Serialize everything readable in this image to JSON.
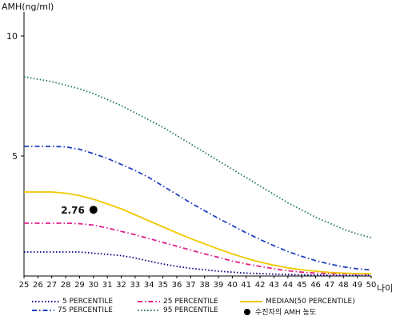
{
  "chart_data": {
    "type": "line",
    "ylabel": "AMH(ng/ml)",
    "xlabel": "나이",
    "x": [
      25,
      26,
      27,
      28,
      29,
      30,
      31,
      32,
      33,
      34,
      35,
      36,
      37,
      38,
      39,
      40,
      41,
      42,
      43,
      44,
      45,
      46,
      47,
      48,
      49,
      50
    ],
    "xlim": [
      25,
      50
    ],
    "ylim": [
      0,
      11
    ],
    "yticks": [
      5,
      10
    ],
    "grid": false,
    "series": [
      {
        "name": "5 PERCENTILE",
        "color": "#000080",
        "dash": "dotted",
        "values": [
          1.0,
          1.0,
          1.0,
          1.0,
          1.0,
          0.95,
          0.9,
          0.85,
          0.75,
          0.62,
          0.5,
          0.4,
          0.32,
          0.26,
          0.2,
          0.16,
          0.12,
          0.1,
          0.08,
          0.06,
          0.05,
          0.04,
          0.03,
          0.02,
          0.02,
          0.02
        ]
      },
      {
        "name": "25 PERCENTILE",
        "color": "#e0208c",
        "dash": "dashdot",
        "values": [
          2.2,
          2.2,
          2.2,
          2.2,
          2.18,
          2.12,
          2.0,
          1.86,
          1.72,
          1.56,
          1.4,
          1.24,
          1.08,
          0.92,
          0.78,
          0.62,
          0.5,
          0.4,
          0.3,
          0.22,
          0.16,
          0.12,
          0.1,
          0.09,
          0.08,
          0.08
        ]
      },
      {
        "name": "MEDIAN(50 PERCENTILE)",
        "color": "#f0c800",
        "dash": "solid",
        "values": [
          3.5,
          3.5,
          3.5,
          3.45,
          3.35,
          3.2,
          3.0,
          2.8,
          2.55,
          2.3,
          2.05,
          1.8,
          1.56,
          1.34,
          1.12,
          0.92,
          0.74,
          0.58,
          0.45,
          0.34,
          0.26,
          0.2,
          0.15,
          0.12,
          0.1,
          0.1
        ]
      },
      {
        "name": "75 PERCENTILE",
        "color": "#2040c0",
        "dash": "dashdot",
        "values": [
          5.4,
          5.4,
          5.4,
          5.38,
          5.28,
          5.1,
          4.9,
          4.65,
          4.4,
          4.1,
          3.75,
          3.4,
          3.05,
          2.72,
          2.4,
          2.1,
          1.8,
          1.52,
          1.26,
          1.02,
          0.82,
          0.64,
          0.5,
          0.38,
          0.3,
          0.25
        ]
      },
      {
        "name": "95 PERCENTILE",
        "color": "#1f7a4f",
        "dash": "dotted",
        "values": [
          8.3,
          8.2,
          8.1,
          7.95,
          7.8,
          7.6,
          7.35,
          7.1,
          6.8,
          6.5,
          6.2,
          5.85,
          5.5,
          5.15,
          4.8,
          4.45,
          4.1,
          3.75,
          3.4,
          3.05,
          2.75,
          2.45,
          2.2,
          1.95,
          1.75,
          1.6
        ]
      }
    ],
    "point": {
      "name": "수진자의 AMH 농도",
      "x": 30,
      "y": 2.76,
      "label": "2.76",
      "color": "#000000"
    },
    "legend_position": "bottom"
  }
}
